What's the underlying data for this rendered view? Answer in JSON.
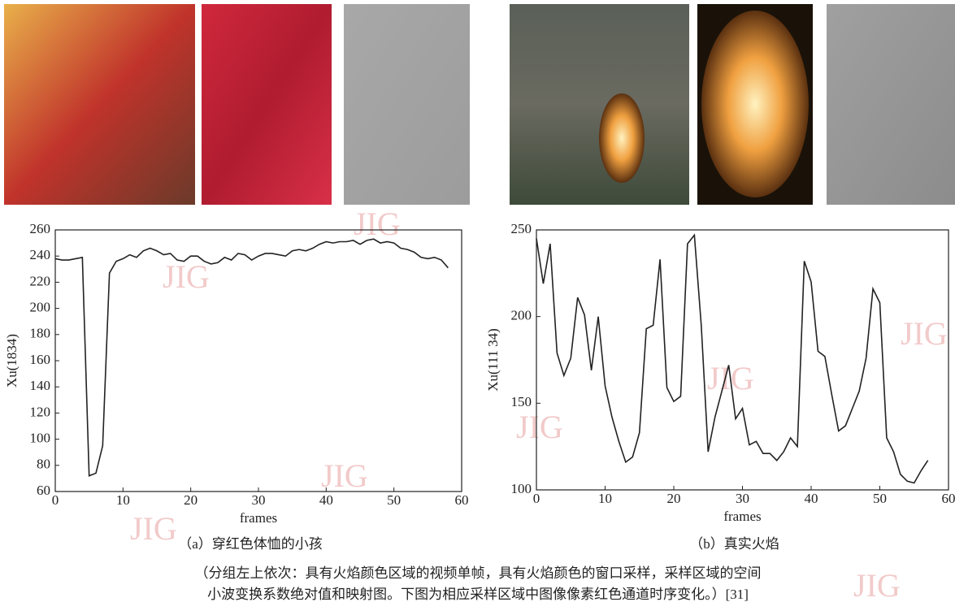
{
  "chart_data": [
    {
      "type": "line",
      "caption": "（a）穿红色体恤的小孩",
      "x_label": "frames",
      "y_label": "Xu(1834)",
      "color": "#222222",
      "x": [
        0,
        1,
        2,
        3,
        4,
        5,
        6,
        7,
        8,
        9,
        10,
        11,
        12,
        13,
        14,
        15,
        16,
        17,
        18,
        19,
        20,
        21,
        22,
        23,
        24,
        25,
        26,
        27,
        28,
        29,
        30,
        31,
        32,
        33,
        34,
        35,
        36,
        37,
        38,
        39,
        40,
        41,
        42,
        43,
        44,
        45,
        46,
        47,
        48,
        49,
        50,
        51,
        52,
        53,
        54,
        55,
        56,
        57,
        58
      ],
      "values": [
        238,
        237,
        237,
        238,
        239,
        72,
        74,
        95,
        227,
        236,
        238,
        241,
        239,
        244,
        246,
        244,
        241,
        242,
        237,
        236,
        240,
        240,
        236,
        234,
        235,
        239,
        237,
        242,
        241,
        237,
        240,
        242,
        242,
        241,
        240,
        244,
        245,
        244,
        246,
        249,
        251,
        250,
        251,
        251,
        252,
        249,
        252,
        253,
        250,
        251,
        250,
        246,
        245,
        243,
        239,
        238,
        239,
        237,
        231
      ],
      "xlim": [
        0,
        60
      ],
      "xticks": [
        0,
        10,
        20,
        30,
        40,
        50,
        60
      ],
      "ylim": [
        60,
        260
      ],
      "yticks": [
        60,
        80,
        100,
        120,
        140,
        160,
        180,
        200,
        220,
        240,
        260
      ]
    },
    {
      "type": "line",
      "caption": "（b）真实火焰",
      "x_label": "frames",
      "y_label": "Xu(111 34)",
      "color": "#222222",
      "x": [
        0,
        1,
        2,
        3,
        4,
        5,
        6,
        7,
        8,
        9,
        10,
        11,
        12,
        13,
        14,
        15,
        16,
        17,
        18,
        19,
        20,
        21,
        22,
        23,
        24,
        25,
        26,
        27,
        28,
        29,
        30,
        31,
        32,
        33,
        34,
        35,
        36,
        37,
        38,
        39,
        40,
        41,
        42,
        43,
        44,
        45,
        46,
        47,
        48,
        49,
        50,
        51,
        52,
        53,
        54,
        55,
        56,
        57
      ],
      "values": [
        245,
        219,
        242,
        179,
        166,
        176,
        211,
        201,
        169,
        200,
        160,
        142,
        128,
        116,
        119,
        133,
        193,
        195,
        233,
        159,
        151,
        154,
        242,
        247,
        195,
        122,
        142,
        157,
        172,
        141,
        147,
        126,
        128,
        121,
        121,
        117,
        122,
        130,
        125,
        232,
        220,
        180,
        177,
        155,
        134,
        137,
        147,
        157,
        176,
        216,
        208,
        130,
        122,
        109,
        105,
        104,
        111,
        117
      ],
      "xlim": [
        0,
        60
      ],
      "xticks": [
        0,
        10,
        20,
        30,
        40,
        50,
        60
      ],
      "ylim": [
        100,
        250
      ],
      "yticks": [
        100,
        150,
        200,
        250
      ]
    }
  ],
  "figure_caption": [
    "（分组左上依次：具有火焰颜色区域的视频单帧，具有火焰颜色的窗口采样，采样区域的空间",
    "小波变换系数绝对值和映射图。下图为相应采样区域中图像像素红色通道时序变化。）[31]"
  ],
  "watermark": "JIG"
}
